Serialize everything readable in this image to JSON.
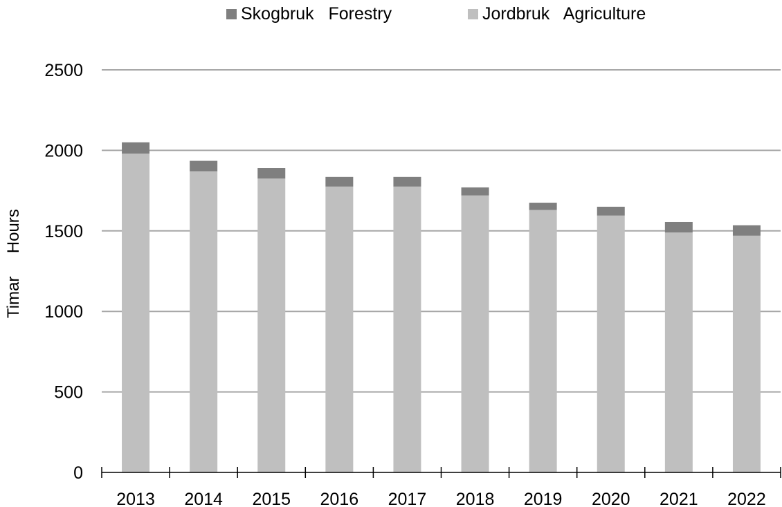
{
  "chart_data": {
    "type": "bar",
    "stacked": true,
    "categories": [
      "2013",
      "2014",
      "2015",
      "2016",
      "2017",
      "2018",
      "2019",
      "2020",
      "2021",
      "2022"
    ],
    "series": [
      {
        "name": "Jordbruk   Agriculture",
        "color": "#bfbfbf",
        "values": [
          1980,
          1870,
          1825,
          1775,
          1775,
          1720,
          1630,
          1595,
          1490,
          1470
        ]
      },
      {
        "name": "Skogbruk   Forestry",
        "color": "#7f7f7f",
        "values": [
          70,
          65,
          65,
          60,
          60,
          50,
          45,
          55,
          65,
          65
        ]
      }
    ],
    "legend_order": [
      1,
      0
    ],
    "legend_position": "top-center",
    "ylabel": "Timar     Hours",
    "xlabel": "",
    "ylim": [
      0,
      2500
    ],
    "yticks": [
      0,
      500,
      1000,
      1500,
      2000,
      2500
    ],
    "gridlines": true,
    "grid_color": "#a6a6a6"
  }
}
